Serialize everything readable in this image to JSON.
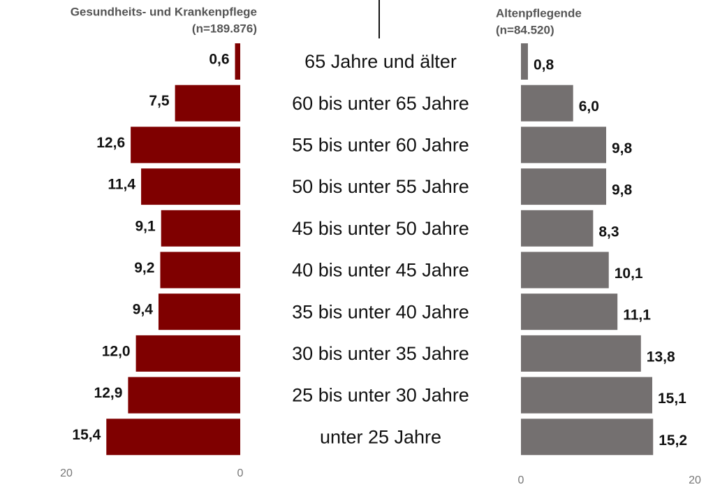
{
  "chart_data": [
    {
      "type": "bar",
      "orientation": "horizontal",
      "title": "Gesundheits- und Krankenpflege",
      "subtitle": "(n=189.876)",
      "categories": [
        "65 Jahre und älter",
        "60 bis unter 65 Jahre",
        "55 bis unter 60 Jahre",
        "50 bis unter 55 Jahre",
        "45 bis unter 50 Jahre",
        "40 bis unter 45 Jahre",
        "35 bis unter 40 Jahre",
        "30 bis unter 35 Jahre",
        "25 bis unter 30 Jahre",
        "unter 25 Jahre"
      ],
      "values": [
        0.6,
        7.5,
        12.6,
        11.4,
        9.1,
        9.2,
        9.4,
        12.0,
        12.9,
        15.4
      ],
      "value_labels": [
        "0,6",
        "7,5",
        "12,6",
        "11,4",
        "9,1",
        "9,2",
        "9,4",
        "12,0",
        "12,9",
        "15,4"
      ],
      "color": "#7f0000",
      "xlim": [
        20,
        0
      ],
      "xticks": [
        20,
        0
      ]
    },
    {
      "type": "bar",
      "orientation": "horizontal",
      "title": "Altenpflegende",
      "subtitle": "(n=84.520)",
      "values": [
        0.8,
        6.0,
        9.8,
        9.8,
        8.3,
        10.1,
        11.1,
        13.8,
        15.1,
        15.2
      ],
      "value_labels": [
        "0,8",
        "6,0",
        "9,8",
        "9,8",
        "8,3",
        "10,1",
        "11,1",
        "13,8",
        "15,1",
        "15,2"
      ],
      "color": "#747070",
      "xlim": [
        0,
        20
      ],
      "xticks": [
        0,
        20
      ]
    }
  ]
}
